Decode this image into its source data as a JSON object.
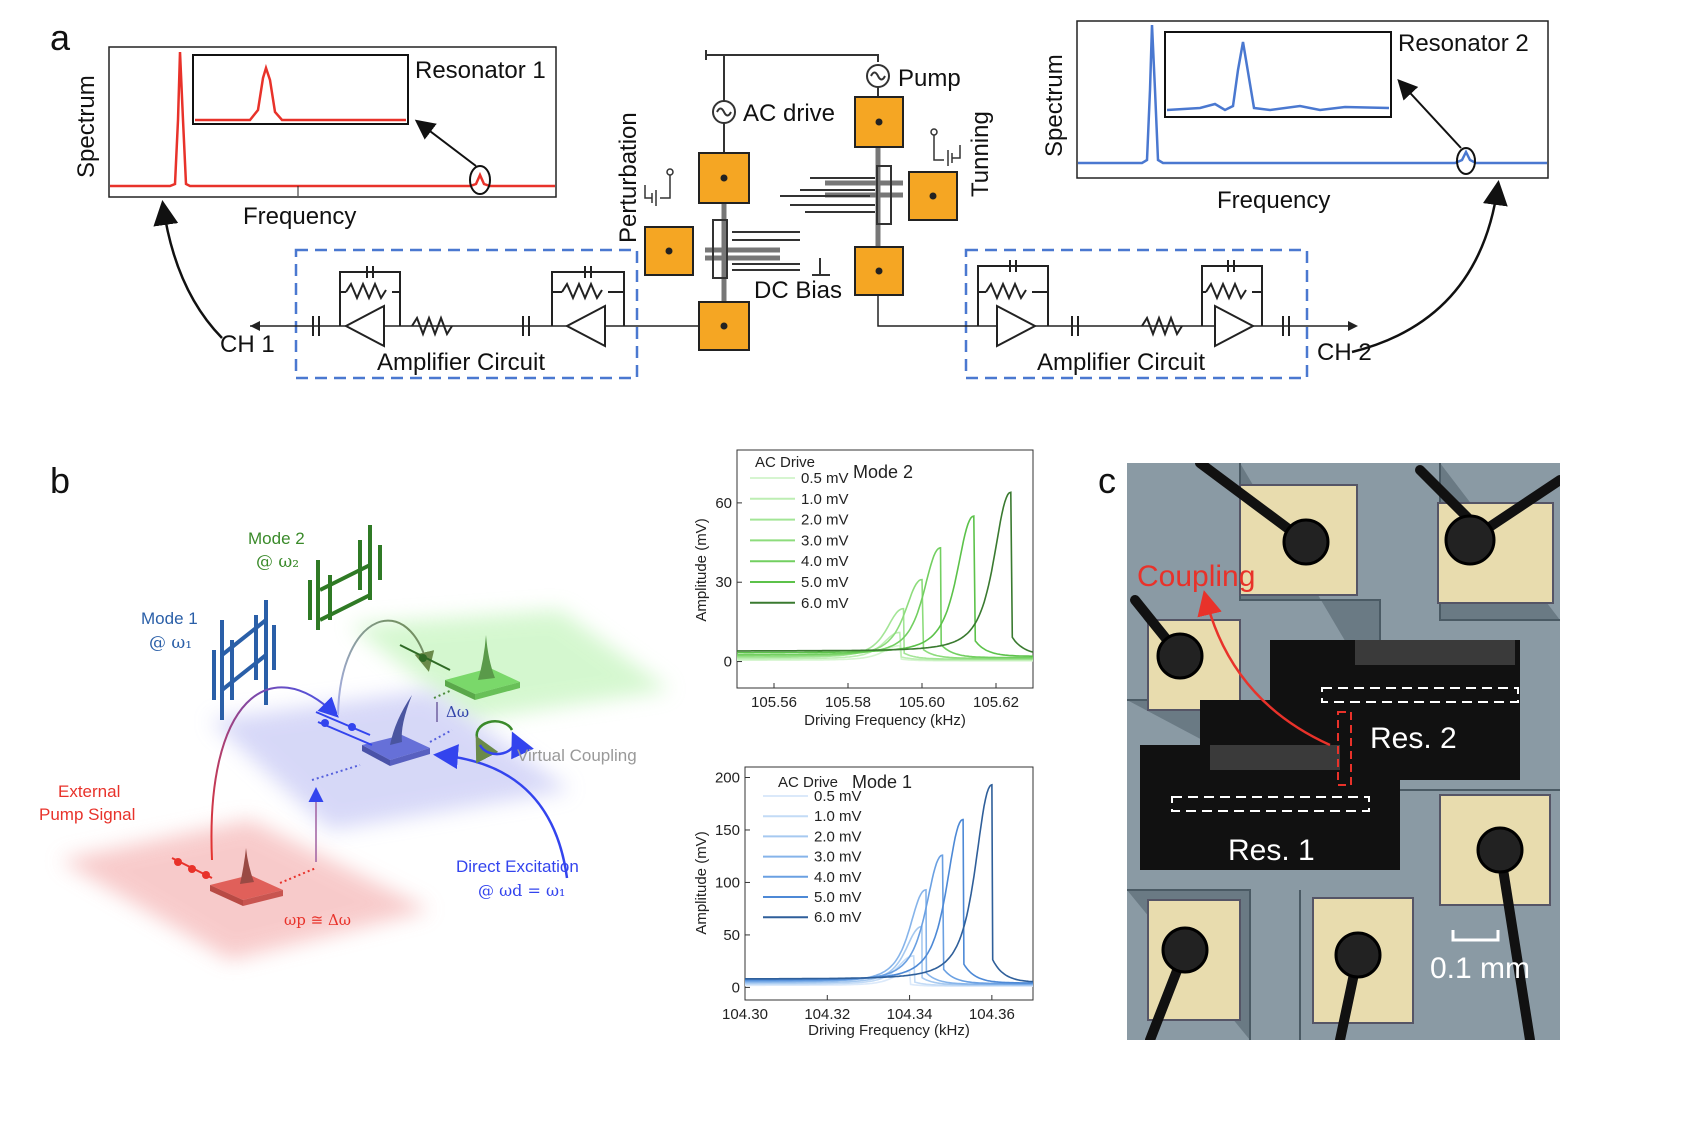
{
  "panel_labels": {
    "a": "a",
    "b": "b",
    "c": "c"
  },
  "panel_a": {
    "spectrum1": {
      "ylabel": "Spectrum",
      "xlabel": "Frequency",
      "inset_label": "Resonator 1",
      "color": "#e8322a"
    },
    "spectrum2": {
      "ylabel": "Spectrum",
      "xlabel": "Frequency",
      "inset_label": "Resonator 2",
      "color": "#4a78d0"
    },
    "circuit": {
      "ac_drive": "AC drive",
      "pump": "Pump",
      "perturbation": "Perturbation",
      "tunning": "Tunning",
      "dc_bias": "DC Bias",
      "amplifier_left": "Amplifier Circuit",
      "amplifier_right": "Amplifier Circuit",
      "ch1": "CH 1",
      "ch2": "CH 2",
      "electrode_color": "#f5a623",
      "box_color": "#4a78d0"
    }
  },
  "panel_b": {
    "mode1": {
      "title": "Mode 1",
      "freq": "@ ω₁",
      "color": "#2a5fa8"
    },
    "mode2": {
      "title": "Mode 2",
      "freq": "@ ω₂",
      "color": "#3a8a2a"
    },
    "delta_omega": "Δω",
    "virtual_coupling": "Virtual Coupling",
    "external_pump": [
      "External",
      "Pump Signal"
    ],
    "pump_relation": "ωp ≅ Δω",
    "direct_excitation": [
      "Direct Excitation",
      "@ ωd = ω₁"
    ]
  },
  "chart_data": [
    {
      "type": "line",
      "title": "Mode 2",
      "legend_title": "AC Drive",
      "xlabel": "Driving Frequency (kHz)",
      "ylabel": "Amplitude (mV)",
      "xlim": [
        105.55,
        105.63
      ],
      "ylim": [
        -10,
        80
      ],
      "xticks": [
        "105.56",
        "105.58",
        "105.60",
        "105.62"
      ],
      "yticks": [
        "0",
        "30",
        "60"
      ],
      "legend_position": "top-left",
      "series": [
        {
          "name": "0.5 mV",
          "peak_freq": 105.594,
          "peak_amp": 6,
          "base": 0.5,
          "color": "#d6f5d0"
        },
        {
          "name": "1.0 mV",
          "peak_freq": 105.594,
          "peak_amp": 11,
          "base": 1,
          "color": "#bdeeb3"
        },
        {
          "name": "2.0 mV",
          "peak_freq": 105.595,
          "peak_amp": 20,
          "base": 1.5,
          "color": "#a3e596"
        },
        {
          "name": "3.0 mV",
          "peak_freq": 105.6,
          "peak_amp": 31,
          "base": 2,
          "color": "#8ddc7c"
        },
        {
          "name": "4.0 mV",
          "peak_freq": 105.605,
          "peak_amp": 43,
          "base": 2.5,
          "color": "#72cf60"
        },
        {
          "name": "5.0 mV",
          "peak_freq": 105.614,
          "peak_amp": 55,
          "base": 3.3,
          "color": "#5cc24a"
        },
        {
          "name": "6.0 mV",
          "peak_freq": 105.624,
          "peak_amp": 64,
          "base": 4,
          "color": "#3a7a30"
        }
      ]
    },
    {
      "type": "line",
      "title": "Mode 1",
      "legend_title": "AC Drive",
      "xlabel": "Driving Frequency (kHz)",
      "ylabel": "Amplitude (mV)",
      "xlim": [
        104.3,
        104.37
      ],
      "ylim": [
        -12,
        210
      ],
      "xticks": [
        "104.30",
        "104.32",
        "104.34",
        "104.36"
      ],
      "yticks": [
        "0",
        "50",
        "100",
        "150",
        "200"
      ],
      "legend_position": "top-left",
      "series": [
        {
          "name": "0.5 mV",
          "peak_freq": 104.34,
          "peak_amp": 15,
          "base": 2,
          "color": "#dbe9fa"
        },
        {
          "name": "1.0 mV",
          "peak_freq": 104.341,
          "peak_amp": 30,
          "base": 3,
          "color": "#c3dbf6"
        },
        {
          "name": "2.0 mV",
          "peak_freq": 104.343,
          "peak_amp": 58,
          "base": 4,
          "color": "#a6c9f0"
        },
        {
          "name": "3.0 mV",
          "peak_freq": 104.344,
          "peak_amp": 93,
          "base": 5,
          "color": "#86b4ea"
        },
        {
          "name": "4.0 mV",
          "peak_freq": 104.348,
          "peak_amp": 126,
          "base": 6,
          "color": "#6aa0e2"
        },
        {
          "name": "5.0 mV",
          "peak_freq": 104.353,
          "peak_amp": 160,
          "base": 7,
          "color": "#4d89d6"
        },
        {
          "name": "6.0 mV",
          "peak_freq": 104.36,
          "peak_amp": 193,
          "base": 8,
          "color": "#2f5f9a"
        }
      ]
    }
  ],
  "panel_c": {
    "coupling": "Coupling",
    "res1": "Res. 1",
    "res2": "Res. 2",
    "scale_bar": "0.1 mm",
    "coupling_color": "#e8322a"
  }
}
